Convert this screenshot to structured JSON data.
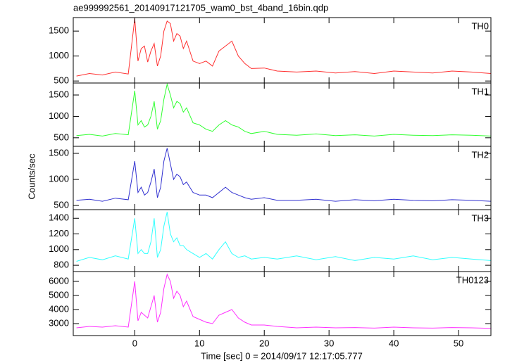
{
  "title": "ae999992561_20140917121705_wam0_bst_4band_16bin.qdp",
  "x_label": "Time [sec] 0 = 2014/09/17 12:17:05.777",
  "y_label": "Counts/sec",
  "chart_data": [
    {
      "type": "line",
      "label": "TH0",
      "color": "#ff3030",
      "x": [
        -9,
        -7,
        -5,
        -3,
        -1,
        0,
        0.5,
        1,
        1.5,
        2,
        2.5,
        3,
        3.5,
        4,
        4.5,
        5,
        5.5,
        6,
        6.5,
        7,
        7.5,
        8,
        9,
        10,
        11,
        12,
        13,
        14,
        15,
        16,
        17,
        18,
        20,
        22,
        25,
        28,
        31,
        34,
        37,
        40,
        43,
        46,
        49,
        52,
        55
      ],
      "values": [
        600,
        650,
        620,
        680,
        640,
        1750,
        900,
        1150,
        1200,
        880,
        1100,
        1250,
        800,
        1000,
        1500,
        1700,
        1650,
        1300,
        1450,
        1400,
        1150,
        1300,
        900,
        850,
        900,
        800,
        1100,
        1200,
        1300,
        1000,
        850,
        750,
        760,
        700,
        680,
        700,
        660,
        690,
        650,
        700,
        680,
        660,
        700,
        680,
        650
      ],
      "xlim": [
        -9.5,
        55
      ],
      "xticks": [
        0,
        10,
        20,
        30,
        40,
        50
      ],
      "ylim": [
        460,
        1770
      ],
      "yticks": [
        500,
        1000,
        1500
      ]
    },
    {
      "type": "line",
      "label": "TH1",
      "color": "#30ff30",
      "x": [
        -9,
        -7,
        -5,
        -3,
        -1,
        0,
        0.5,
        1,
        1.5,
        2,
        2.5,
        3,
        3.5,
        4,
        4.5,
        5,
        5.5,
        6,
        6.5,
        7,
        7.5,
        8,
        9,
        10,
        11,
        12,
        13,
        14,
        15,
        16,
        17,
        18,
        20,
        22,
        25,
        28,
        31,
        34,
        37,
        40,
        43,
        46,
        49,
        52,
        55
      ],
      "values": [
        550,
        580,
        540,
        600,
        570,
        1600,
        800,
        900,
        750,
        800,
        1000,
        1350,
        700,
        900,
        1400,
        1750,
        1500,
        1200,
        1350,
        1300,
        1100,
        1200,
        850,
        800,
        700,
        650,
        800,
        900,
        800,
        750,
        650,
        600,
        650,
        580,
        560,
        590,
        550,
        570,
        540,
        580,
        560,
        550,
        570,
        560,
        540
      ],
      "xlim": [
        -9.5,
        55
      ],
      "xticks": [
        0,
        10,
        20,
        30,
        40,
        50
      ],
      "ylim": [
        300,
        1780
      ],
      "yticks": [
        500,
        1000,
        1500
      ]
    },
    {
      "type": "line",
      "label": "TH2",
      "color": "#3030d0",
      "x": [
        -9,
        -7,
        -5,
        -3,
        -1,
        0,
        0.5,
        1,
        1.5,
        2,
        2.5,
        3,
        3.5,
        4,
        4.5,
        5,
        5.5,
        6,
        6.5,
        7,
        7.5,
        8,
        9,
        10,
        11,
        12,
        13,
        14,
        15,
        16,
        17,
        18,
        20,
        22,
        25,
        28,
        31,
        34,
        37,
        40,
        43,
        46,
        49,
        52,
        55
      ],
      "values": [
        600,
        620,
        580,
        640,
        610,
        1350,
        750,
        850,
        700,
        750,
        950,
        1200,
        650,
        850,
        1350,
        1600,
        1300,
        1000,
        1100,
        1050,
        900,
        950,
        750,
        700,
        700,
        650,
        750,
        850,
        750,
        700,
        650,
        620,
        650,
        600,
        600,
        620,
        580,
        610,
        590,
        620,
        600,
        590,
        610,
        600,
        580
      ],
      "xlim": [
        -9.5,
        55
      ],
      "xticks": [
        0,
        10,
        20,
        30,
        40,
        50
      ],
      "ylim": [
        420,
        1635
      ],
      "yticks": [
        500,
        1000,
        1500
      ]
    },
    {
      "type": "line",
      "label": "TH3",
      "color": "#30ffff",
      "x": [
        -9,
        -7,
        -5,
        -3,
        -1,
        0,
        0.5,
        1,
        1.5,
        2,
        2.5,
        3,
        3.5,
        4,
        4.5,
        5,
        5.5,
        6,
        6.5,
        7,
        7.5,
        8,
        9,
        10,
        11,
        12,
        13,
        14,
        15,
        16,
        17,
        18,
        20,
        22,
        25,
        28,
        31,
        34,
        37,
        40,
        43,
        46,
        49,
        52,
        55
      ],
      "values": [
        850,
        900,
        870,
        920,
        880,
        1400,
        950,
        1000,
        950,
        950,
        1100,
        1400,
        900,
        1000,
        1300,
        1480,
        1200,
        1100,
        1150,
        1050,
        1050,
        1000,
        950,
        900,
        950,
        880,
        1000,
        1100,
        950,
        900,
        920,
        880,
        900,
        880,
        920,
        870,
        910,
        860,
        900,
        880,
        920,
        870,
        900,
        880,
        860
      ],
      "xlim": [
        -9.5,
        55
      ],
      "xticks": [
        0,
        10,
        20,
        30,
        40,
        50
      ],
      "ylim": [
        720,
        1510
      ],
      "yticks": [
        800,
        1000,
        1200,
        1400
      ]
    },
    {
      "type": "line",
      "label": "TH0123",
      "color": "#ff30ff",
      "x": [
        -9,
        -7,
        -5,
        -3,
        -1,
        0,
        0.5,
        1,
        1.5,
        2,
        2.5,
        3,
        3.5,
        4,
        4.5,
        5,
        5.5,
        6,
        6.5,
        7,
        7.5,
        8,
        9,
        10,
        11,
        12,
        13,
        14,
        15,
        16,
        17,
        18,
        20,
        22,
        25,
        28,
        31,
        34,
        37,
        40,
        43,
        46,
        49,
        52,
        55
      ],
      "values": [
        2700,
        2800,
        2750,
        2850,
        2750,
        6000,
        3200,
        3800,
        3600,
        3400,
        4200,
        5000,
        3100,
        3800,
        5500,
        6500,
        6000,
        4800,
        5300,
        5000,
        4200,
        4600,
        3500,
        3300,
        3100,
        3000,
        3600,
        3800,
        4000,
        3400,
        3100,
        2900,
        2900,
        2800,
        2700,
        2750,
        2700,
        2720,
        2680,
        2750,
        2700,
        2680,
        2720,
        2700,
        2660
      ],
      "xlim": [
        -9.5,
        55
      ],
      "xticks": [
        0,
        10,
        20,
        30,
        40,
        50
      ],
      "ylim": [
        2150,
        6700
      ],
      "yticks": [
        3000,
        4000,
        5000,
        6000
      ]
    }
  ]
}
